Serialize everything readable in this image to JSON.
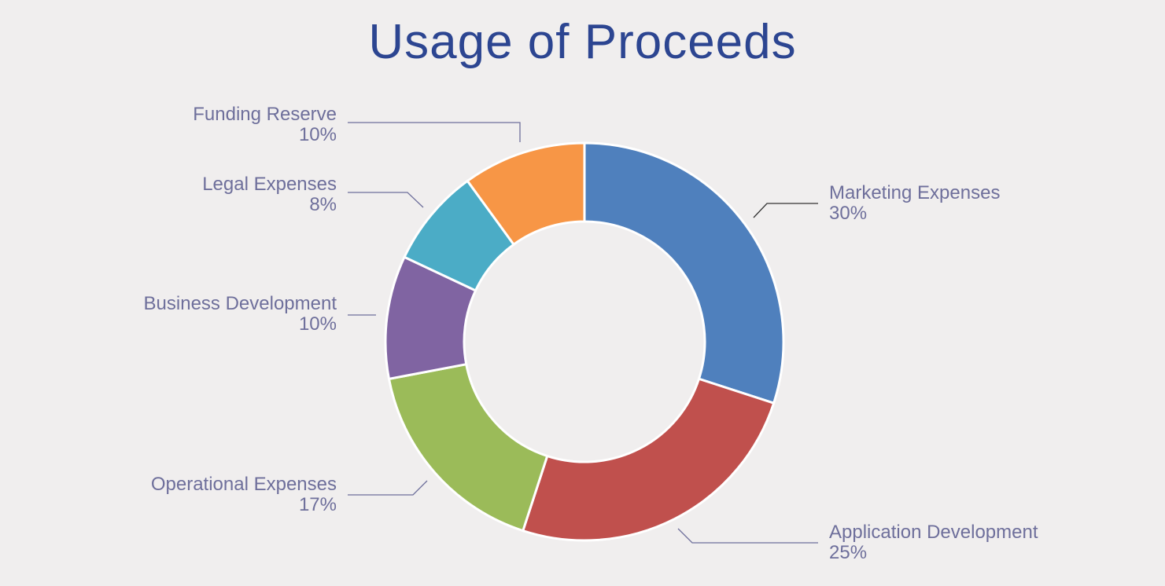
{
  "chart_data": {
    "type": "pie",
    "title": "Usage of Proceeds",
    "donut": true,
    "slices": [
      {
        "label": "Marketing Expenses",
        "value": 30,
        "pct_label": "30%",
        "color": "#4f80bd"
      },
      {
        "label": "Application Development",
        "value": 25,
        "pct_label": "25%",
        "color": "#c0504d"
      },
      {
        "label": "Operational Expenses",
        "value": 17,
        "pct_label": "17%",
        "color": "#9bbb59"
      },
      {
        "label": "Business Development",
        "value": 10,
        "pct_label": "10%",
        "color": "#8064a2"
      },
      {
        "label": "Legal Expenses",
        "value": 8,
        "pct_label": "8%",
        "color": "#4bacc6"
      },
      {
        "label": "Funding Reserve",
        "value": 10,
        "pct_label": "10%",
        "color": "#f79646"
      }
    ],
    "start_angle_deg": 0,
    "direction": "clockwise",
    "legend": "none"
  },
  "colors": {
    "background": "#f0eeee",
    "title": "#2c4591",
    "label_text": "#6e6f9b",
    "leader_line": "#6e6f9b",
    "leader_line_dark": "#333333"
  }
}
